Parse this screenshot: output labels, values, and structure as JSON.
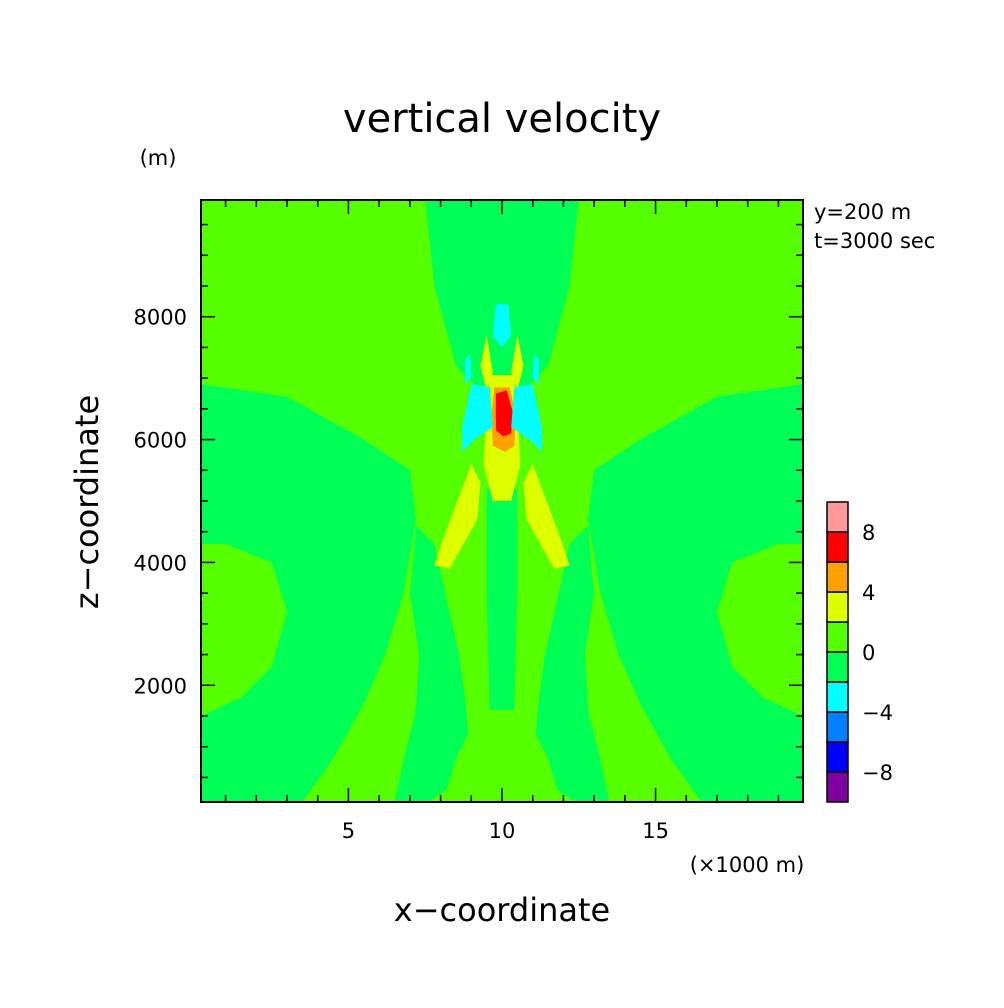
{
  "chart_data": {
    "type": "heatmap",
    "title": "vertical velocity",
    "xlabel": "x−coordinate",
    "ylabel": "z−coordinate",
    "xunit": "(×1000 m)",
    "yunit": "(m)",
    "annotations": [
      "y=200 m",
      "t=3000 sec"
    ],
    "xlim": [
      0.2,
      19.8
    ],
    "ylim": [
      100,
      9900
    ],
    "xticks": [
      {
        "value": 5,
        "label": "5"
      },
      {
        "value": 10,
        "label": "10"
      },
      {
        "value": 15,
        "label": "15"
      }
    ],
    "yticks": [
      {
        "value": 2000,
        "label": "2000"
      },
      {
        "value": 4000,
        "label": "4000"
      },
      {
        "value": 6000,
        "label": "6000"
      },
      {
        "value": 8000,
        "label": "8000"
      }
    ],
    "grid": false,
    "colorbar": {
      "levels": [
        -10,
        -8,
        -6,
        -4,
        -2,
        0,
        2,
        4,
        6,
        8,
        10
      ],
      "colors": [
        "#8000a0",
        "#0000ff",
        "#0080ff",
        "#00ffff",
        "#00ff55",
        "#55ff00",
        "#ddff00",
        "#ffa000",
        "#ff0000",
        "#ff9999"
      ],
      "tick_labels": [
        {
          "value": -8,
          "label": "−8"
        },
        {
          "value": -4,
          "label": "−4"
        },
        {
          "value": 0,
          "label": "0"
        },
        {
          "value": 4,
          "label": "4"
        },
        {
          "value": 8,
          "label": "8"
        }
      ]
    },
    "field_regions": [
      {
        "level": 0.5,
        "description": "background near-zero upward motion",
        "polygon": [
          [
            0.2,
            100
          ],
          [
            19.8,
            100
          ],
          [
            19.8,
            9900
          ],
          [
            0.2,
            9900
          ]
        ]
      },
      {
        "level": -0.5,
        "description": "left outer downdraft band",
        "polygon": [
          [
            0.2,
            6900
          ],
          [
            3,
            6700
          ],
          [
            5.5,
            6000
          ],
          [
            7,
            5500
          ],
          [
            7.2,
            4700
          ],
          [
            6.8,
            3500
          ],
          [
            6.2,
            2500
          ],
          [
            5.5,
            1700
          ],
          [
            4.5,
            800
          ],
          [
            3.5,
            100
          ],
          [
            0.2,
            100
          ],
          [
            0.2,
            1500
          ],
          [
            1.5,
            1800
          ],
          [
            2.5,
            2300
          ],
          [
            3,
            3200
          ],
          [
            2.5,
            4000
          ],
          [
            1,
            4300
          ],
          [
            0.2,
            4300
          ]
        ]
      },
      {
        "level": -0.5,
        "description": "right outer downdraft band",
        "polygon": [
          [
            19.8,
            6900
          ],
          [
            17,
            6700
          ],
          [
            14.5,
            6000
          ],
          [
            13,
            5500
          ],
          [
            12.8,
            4700
          ],
          [
            13.2,
            3500
          ],
          [
            13.8,
            2500
          ],
          [
            14.5,
            1700
          ],
          [
            15.5,
            800
          ],
          [
            16.5,
            100
          ],
          [
            19.8,
            100
          ],
          [
            19.8,
            1500
          ],
          [
            18.5,
            1800
          ],
          [
            17.5,
            2300
          ],
          [
            17,
            3200
          ],
          [
            17.5,
            4000
          ],
          [
            19,
            4300
          ],
          [
            19.8,
            4300
          ]
        ]
      },
      {
        "level": -0.5,
        "description": "upper central downdraft column",
        "polygon": [
          [
            7.5,
            9900
          ],
          [
            12.5,
            9900
          ],
          [
            12.2,
            8500
          ],
          [
            11.5,
            7200
          ],
          [
            10.7,
            6800
          ],
          [
            10,
            6600
          ],
          [
            9.3,
            6800
          ],
          [
            8.5,
            7200
          ],
          [
            7.8,
            8500
          ]
        ]
      },
      {
        "level": -0.5,
        "description": "lower central downdraft column",
        "polygon": [
          [
            9.5,
            5200
          ],
          [
            10.5,
            5200
          ],
          [
            10.5,
            3500
          ],
          [
            10.4,
            1600
          ],
          [
            9.6,
            1600
          ],
          [
            9.5,
            3500
          ]
        ]
      },
      {
        "level": -0.5,
        "description": "lower left downdraft strip",
        "polygon": [
          [
            7.2,
            4600
          ],
          [
            7.8,
            4300
          ],
          [
            8.2,
            3400
          ],
          [
            8.6,
            2500
          ],
          [
            8.8,
            1800
          ],
          [
            8.9,
            1200
          ],
          [
            8.5,
            800
          ],
          [
            8.2,
            300
          ],
          [
            7.6,
            100
          ],
          [
            6.5,
            100
          ],
          [
            6.8,
            800
          ],
          [
            7.2,
            1600
          ],
          [
            7.3,
            2500
          ],
          [
            7,
            3500
          ]
        ]
      },
      {
        "level": -0.5,
        "description": "lower right downdraft strip",
        "polygon": [
          [
            12.8,
            4600
          ],
          [
            12.2,
            4300
          ],
          [
            11.8,
            3400
          ],
          [
            11.4,
            2500
          ],
          [
            11.2,
            1800
          ],
          [
            11.1,
            1200
          ],
          [
            11.5,
            800
          ],
          [
            11.8,
            300
          ],
          [
            12.4,
            100
          ],
          [
            13.5,
            100
          ],
          [
            13.2,
            800
          ],
          [
            12.8,
            1600
          ],
          [
            12.7,
            2500
          ],
          [
            13,
            3500
          ]
        ]
      },
      {
        "level": 3,
        "description": "central updraft core",
        "polygon": [
          [
            9.6,
            7050
          ],
          [
            10.4,
            7050
          ],
          [
            10.5,
            6500
          ],
          [
            10.6,
            5600
          ],
          [
            10.3,
            5000
          ],
          [
            9.7,
            5000
          ],
          [
            9.4,
            5600
          ],
          [
            9.5,
            6500
          ]
        ]
      },
      {
        "level": 5,
        "description": "central updraft inner core",
        "polygon": [
          [
            9.75,
            6850
          ],
          [
            10.25,
            6850
          ],
          [
            10.45,
            6400
          ],
          [
            10.4,
            5900
          ],
          [
            10.1,
            5800
          ],
          [
            9.7,
            5900
          ],
          [
            9.65,
            6400
          ]
        ]
      },
      {
        "level": 7,
        "description": "central updraft maximum",
        "polygon": [
          [
            9.8,
            6750
          ],
          [
            10.15,
            6800
          ],
          [
            10.35,
            6450
          ],
          [
            10.3,
            6100
          ],
          [
            10.05,
            6050
          ],
          [
            9.8,
            6150
          ]
        ]
      },
      {
        "level": 3,
        "description": "left secondary updraft",
        "polygon": [
          [
            9,
            5600
          ],
          [
            8.1,
            4400
          ],
          [
            7.8,
            3950
          ],
          [
            8.3,
            3900
          ],
          [
            9.2,
            4700
          ],
          [
            9.3,
            5300
          ]
        ]
      },
      {
        "level": 3,
        "description": "right secondary updraft",
        "polygon": [
          [
            11,
            5600
          ],
          [
            11.9,
            4400
          ],
          [
            12.2,
            3950
          ],
          [
            11.7,
            3900
          ],
          [
            10.8,
            4700
          ],
          [
            10.7,
            5300
          ]
        ]
      },
      {
        "level": 3,
        "description": "small updraft above left",
        "polygon": [
          [
            9.5,
            7700
          ],
          [
            9.7,
            7100
          ],
          [
            9.5,
            6800
          ],
          [
            9.3,
            7200
          ]
        ]
      },
      {
        "level": 3,
        "description": "small updraft above right",
        "polygon": [
          [
            10.5,
            7700
          ],
          [
            10.3,
            7100
          ],
          [
            10.5,
            6800
          ],
          [
            10.7,
            7200
          ]
        ]
      },
      {
        "level": -3,
        "description": "left downdraft lobe",
        "polygon": [
          [
            8.7,
            6200
          ],
          [
            9.0,
            6900
          ],
          [
            9.6,
            6850
          ],
          [
            9.7,
            6200
          ],
          [
            9.1,
            6000
          ],
          [
            8.7,
            5800
          ]
        ]
      },
      {
        "level": -3,
        "description": "right downdraft lobe",
        "polygon": [
          [
            11.3,
            6200
          ],
          [
            11.0,
            6900
          ],
          [
            10.4,
            6850
          ],
          [
            10.3,
            6200
          ],
          [
            10.9,
            6000
          ],
          [
            11.3,
            5800
          ]
        ]
      },
      {
        "level": -3,
        "description": "upper downdraft above core",
        "polygon": [
          [
            9.8,
            8200
          ],
          [
            10.2,
            8200
          ],
          [
            10.3,
            7700
          ],
          [
            10,
            7500
          ],
          [
            9.7,
            7700
          ]
        ]
      },
      {
        "level": -3,
        "description": "small downdraft left",
        "polygon": [
          [
            8.8,
            7300
          ],
          [
            8.95,
            7400
          ],
          [
            9.0,
            7000
          ],
          [
            8.8,
            6900
          ]
        ]
      },
      {
        "level": -3,
        "description": "small downdraft right",
        "polygon": [
          [
            11.2,
            7300
          ],
          [
            11.05,
            7400
          ],
          [
            11.0,
            7000
          ],
          [
            11.2,
            6900
          ]
        ]
      }
    ]
  }
}
